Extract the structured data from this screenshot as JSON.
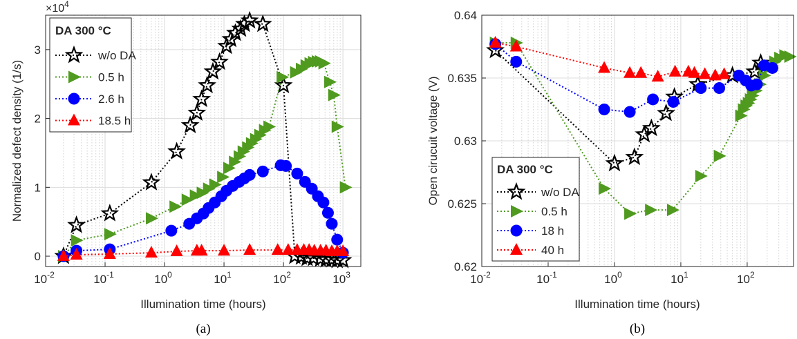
{
  "panels": [
    {
      "caption": "(a)",
      "chart_data": {
        "type": "line",
        "x_scale": "log",
        "y_scale": "linear",
        "xlabel": "Illumination time (hours)",
        "ylabel": "Normalized defect density (1/s)",
        "y_multiplier_text": "×10",
        "y_multiplier_exp": "4",
        "xlim": [
          0.01,
          2000
        ],
        "ylim": [
          -0.15,
          3.5
        ],
        "x_ticks": [
          0.01,
          0.1,
          1,
          10,
          100,
          1000
        ],
        "x_tick_exps": [
          "-2",
          "-1",
          "0",
          "1",
          "2",
          "3"
        ],
        "y_ticks": [
          0,
          1,
          2,
          3
        ],
        "y_tick_labels": [
          "0",
          "1",
          "2",
          "3"
        ],
        "grid": true,
        "legend": {
          "title": "DA 300 °C",
          "position": "top-left",
          "entries": [
            "w/o DA",
            "0.5 h",
            "2.6 h",
            "18.5 h"
          ]
        },
        "series": [
          {
            "name": "w/o DA",
            "color": "#000000",
            "marker": "star-hollow",
            "x": [
              0.02,
              0.033,
              0.12,
              0.6,
              1.6,
              2.7,
              3.5,
              4.2,
              5.2,
              6.5,
              8.4,
              11,
              13,
              15.5,
              19,
              22,
              27,
              45,
              100,
              155,
              200,
              250,
              320,
              420,
              520,
              650,
              800,
              1000
            ],
            "y": [
              0,
              0.45,
              0.62,
              1.07,
              1.52,
              1.9,
              2.08,
              2.28,
              2.48,
              2.68,
              2.82,
              3.05,
              3.15,
              3.24,
              3.3,
              3.37,
              3.42,
              3.37,
              2.48,
              0.0,
              -0.01,
              -0.03,
              -0.03,
              -0.04,
              -0.05,
              -0.05,
              -0.06,
              -0.06
            ]
          },
          {
            "name": "0.5 h",
            "color": "#4f9a1f",
            "marker": "triangle-right",
            "x": [
              0.02,
              0.033,
              0.12,
              0.6,
              1.5,
              2.4,
              3.3,
              4.3,
              5.5,
              7.0,
              9.5,
              12,
              15,
              18,
              21,
              25,
              29,
              34,
              40,
              48,
              57,
              95,
              160,
              200,
              240,
              280,
              320,
              370,
              420,
              480,
              600,
              700,
              800,
              1100
            ],
            "y": [
              0,
              0.23,
              0.32,
              0.55,
              0.72,
              0.82,
              0.88,
              0.92,
              0.98,
              1.04,
              1.15,
              1.28,
              1.37,
              1.45,
              1.52,
              1.58,
              1.64,
              1.7,
              1.76,
              1.83,
              1.88,
              2.6,
              2.67,
              2.72,
              2.77,
              2.8,
              2.82,
              2.83,
              2.83,
              2.8,
              2.53,
              2.34,
              1.88,
              1.0
            ]
          },
          {
            "name": "2.6 h",
            "color": "#0000ff",
            "marker": "circle",
            "x": [
              0.02,
              0.033,
              0.12,
              1.3,
              2.6,
              3.5,
              4.5,
              5.5,
              7,
              9,
              11,
              14,
              18,
              22,
              27,
              45,
              90,
              110,
              170,
              230,
              300,
              380,
              470,
              560,
              650,
              800,
              1000
            ],
            "y": [
              0,
              0.08,
              0.1,
              0.37,
              0.47,
              0.55,
              0.62,
              0.7,
              0.78,
              0.87,
              0.95,
              1.02,
              1.08,
              1.13,
              1.18,
              1.23,
              1.32,
              1.31,
              1.2,
              1.08,
              0.98,
              0.87,
              0.78,
              0.63,
              0.47,
              0.24,
              0.05
            ]
          },
          {
            "name": "18.5 h",
            "color": "#ff0000",
            "marker": "triangle-up",
            "x": [
              0.02,
              0.033,
              0.12,
              0.6,
              1.6,
              3.5,
              4.2,
              10,
              27,
              80,
              120,
              170,
              220,
              270,
              330,
              420,
              520,
              650,
              800,
              1000
            ],
            "y": [
              0,
              0.02,
              0.03,
              0.05,
              0.07,
              0.08,
              0.08,
              0.08,
              0.09,
              0.09,
              0.09,
              0.09,
              0.09,
              0.09,
              0.08,
              0.08,
              0.08,
              0.07,
              0.07,
              0.07
            ]
          }
        ]
      }
    },
    {
      "caption": "(b)",
      "chart_data": {
        "type": "line",
        "x_scale": "log",
        "y_scale": "linear",
        "xlabel": "Illumination time (hours)",
        "ylabel": "Open cirucuit voltage (V)",
        "xlim": [
          0.01,
          500
        ],
        "ylim": [
          0.62,
          0.64
        ],
        "x_ticks": [
          0.01,
          0.1,
          1,
          10,
          100
        ],
        "x_tick_exps": [
          "-2",
          "-1",
          "0",
          "1",
          "2"
        ],
        "y_ticks": [
          0.62,
          0.625,
          0.63,
          0.635,
          0.64
        ],
        "y_tick_labels": [
          "0.62",
          "0.625",
          "0.63",
          "0.635",
          "0.64"
        ],
        "grid": true,
        "legend": {
          "title": "DA 300 °C",
          "position": "bottom-left",
          "entries": [
            "w/o DA",
            "0.5 h",
            "18 h",
            "40 h"
          ]
        },
        "series": [
          {
            "name": "w/o DA",
            "color": "#000000",
            "marker": "star-hollow",
            "x": [
              0.016,
              1.0,
              2.0,
              2.8,
              3.6,
              6.0,
              8.0,
              18,
              60,
              130,
              160
            ],
            "y": [
              0.6372,
              0.6282,
              0.6287,
              0.6305,
              0.631,
              0.6322,
              0.6335,
              0.6345,
              0.6352,
              0.6355,
              0.6362
            ]
          },
          {
            "name": "0.5 h",
            "color": "#4f9a1f",
            "marker": "triangle-right",
            "x": [
              0.016,
              0.033,
              0.7,
              1.7,
              3.5,
              7.5,
              20,
              38,
              80,
              88,
              96,
              104,
              112,
              120,
              135,
              155,
              180,
              215,
              260,
              310,
              370,
              440
            ],
            "y": [
              0.6378,
              0.6378,
              0.6262,
              0.6242,
              0.6245,
              0.6245,
              0.6272,
              0.6288,
              0.632,
              0.6325,
              0.6328,
              0.633,
              0.6333,
              0.6336,
              0.634,
              0.6345,
              0.6352,
              0.6358,
              0.6363,
              0.6366,
              0.6368,
              0.6367
            ]
          },
          {
            "name": "18 h",
            "color": "#0000ff",
            "marker": "circle",
            "x": [
              0.016,
              0.033,
              0.7,
              1.7,
              3.8,
              7.7,
              20,
              38,
              75,
              95,
              115,
              140,
              180,
              240
            ],
            "y": [
              0.6377,
              0.6363,
              0.6325,
              0.6323,
              0.6333,
              0.6331,
              0.6342,
              0.6342,
              0.6352,
              0.6348,
              0.6344,
              0.6345,
              0.636,
              0.6358
            ]
          },
          {
            "name": "40 h",
            "color": "#ff0000",
            "marker": "triangle-up",
            "x": [
              0.016,
              0.033,
              0.7,
              1.7,
              2.5,
              4.5,
              8.2,
              13,
              16,
              23,
              33,
              45
            ],
            "y": [
              0.6378,
              0.6375,
              0.6358,
              0.6354,
              0.6354,
              0.6351,
              0.6355,
              0.6355,
              0.6354,
              0.6353,
              0.6352,
              0.6353
            ]
          }
        ]
      }
    }
  ]
}
